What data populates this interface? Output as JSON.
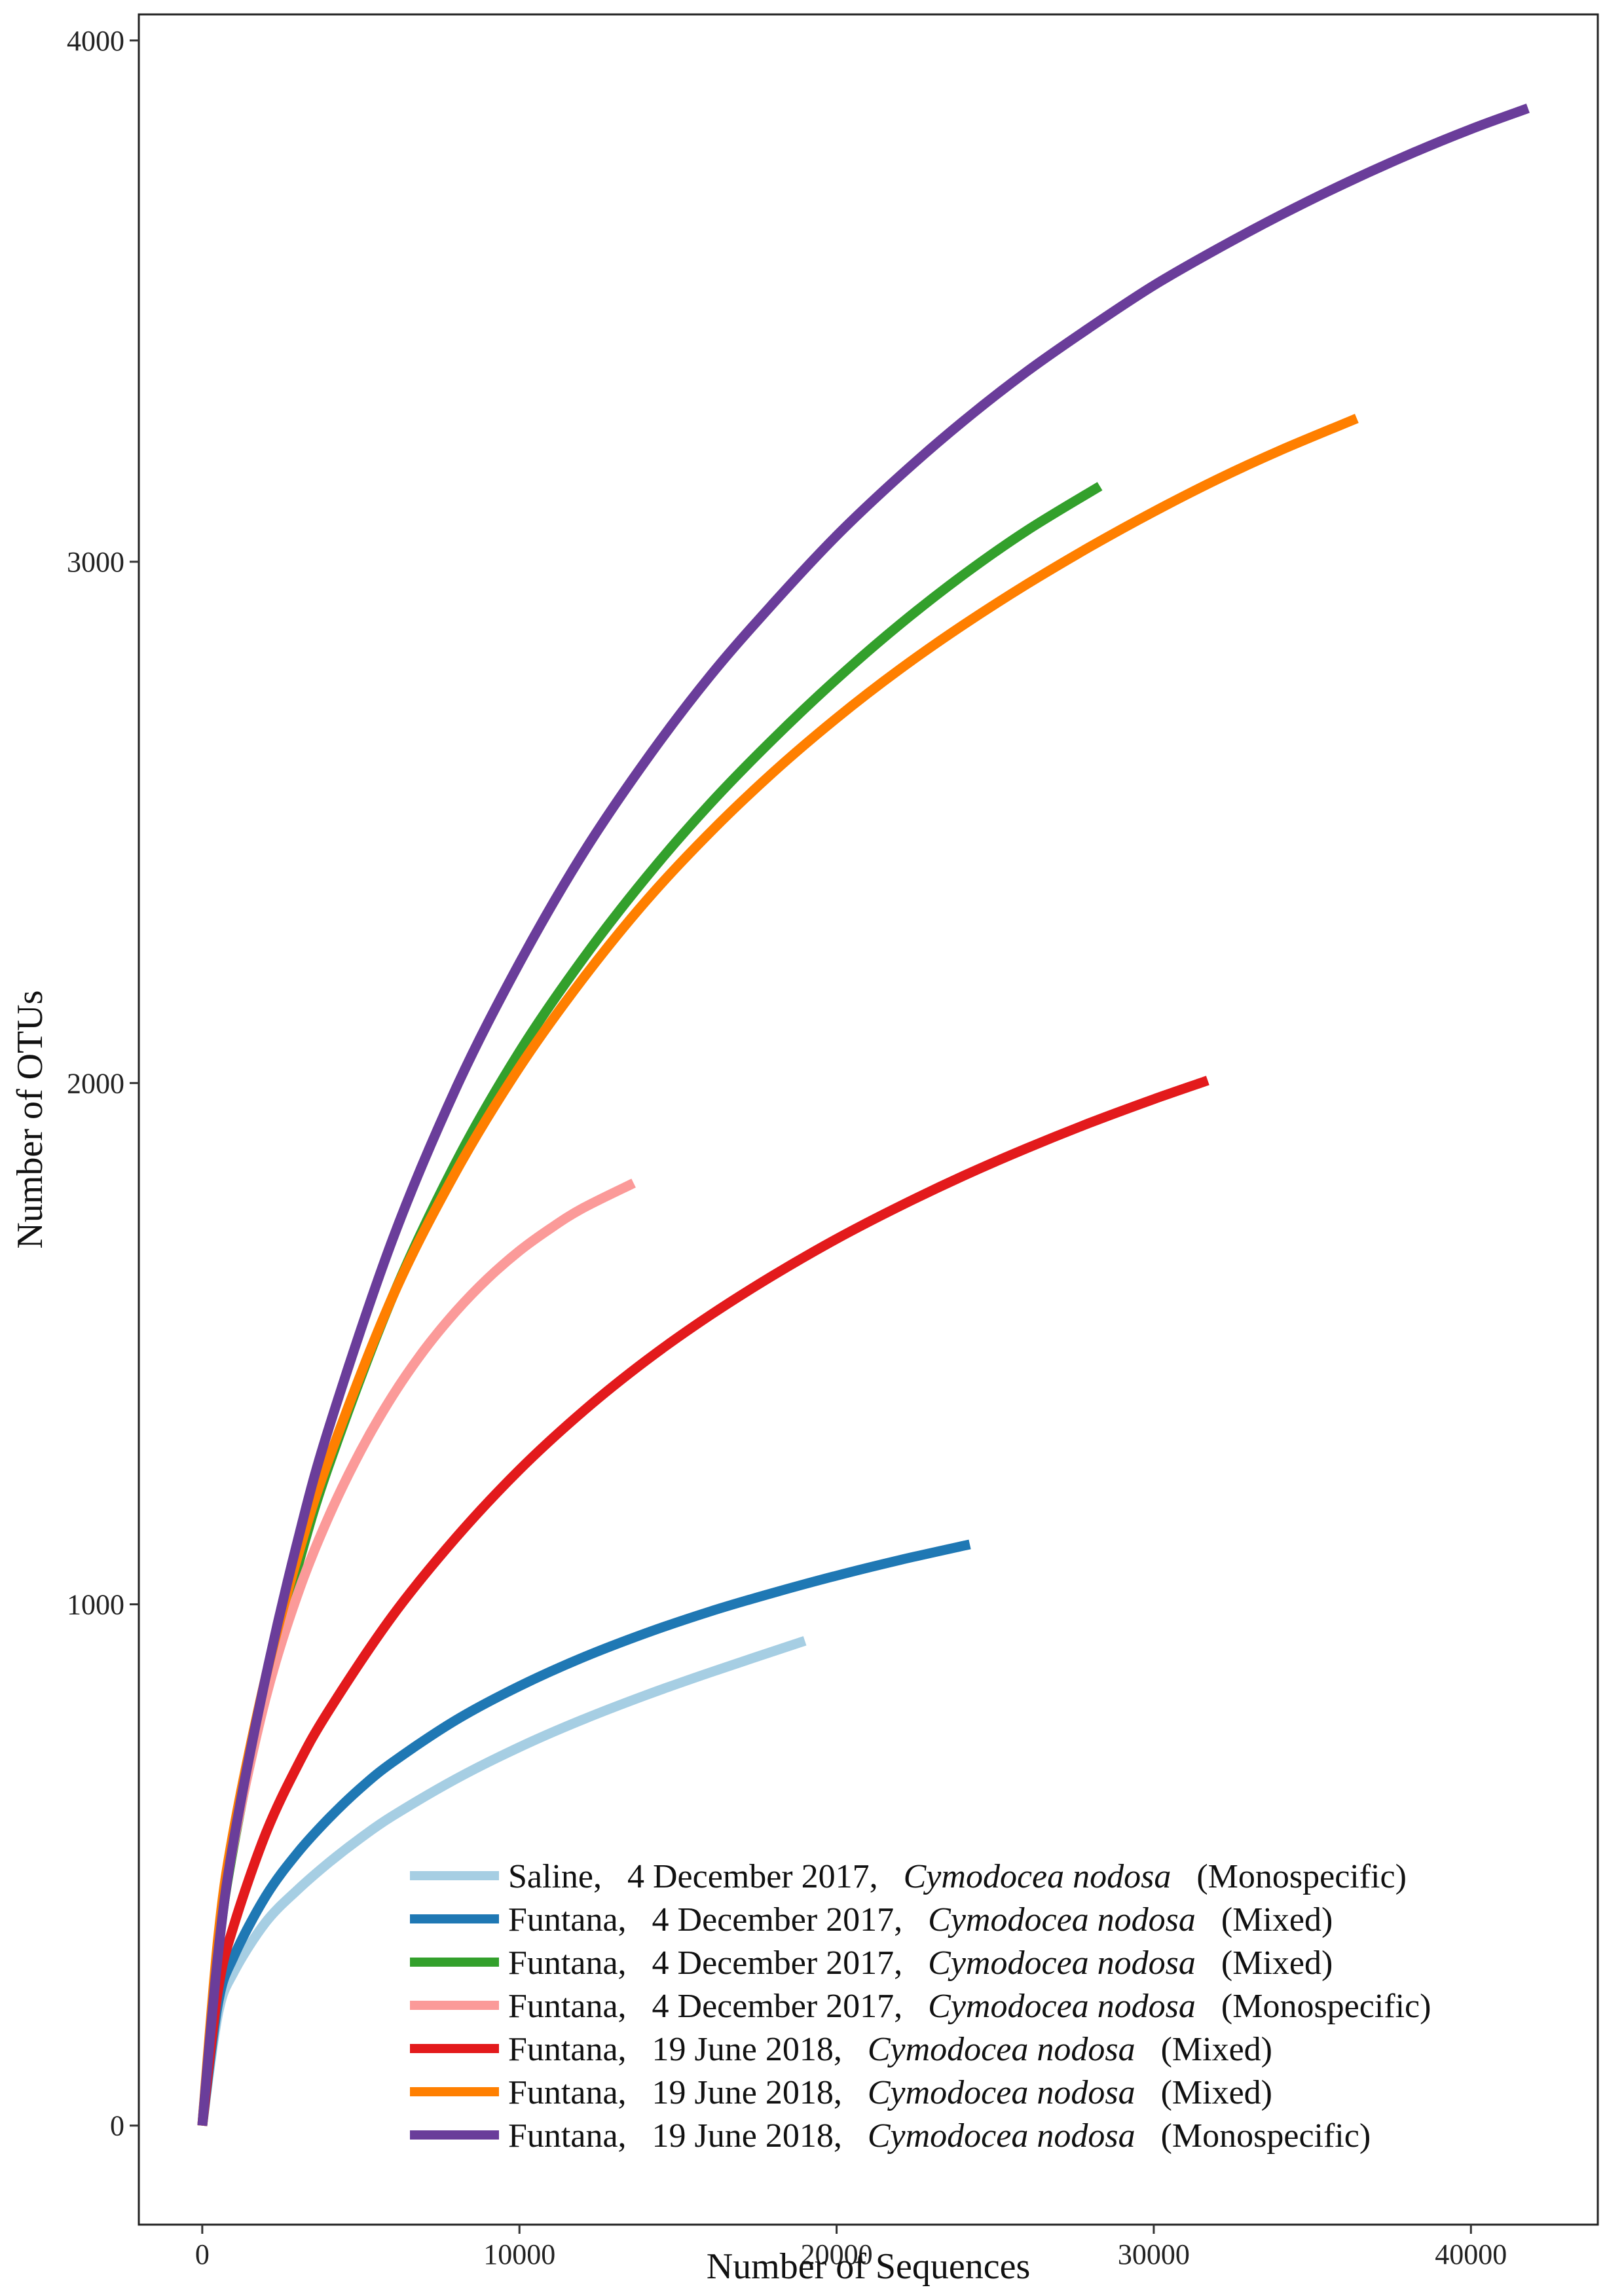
{
  "chart_data": {
    "type": "line",
    "title": "",
    "xlabel": "Number of Sequences",
    "ylabel": "Number of OTUs",
    "xlim": [
      -2000,
      44000
    ],
    "ylim": [
      -190,
      4050
    ],
    "xticks": [
      0,
      10000,
      20000,
      30000,
      40000
    ],
    "yticks": [
      0,
      1000,
      2000,
      3000,
      4000
    ],
    "xtick_labels": [
      "0",
      "10000",
      "20000",
      "30000",
      "40000"
    ],
    "ytick_labels": [
      "0",
      "1000",
      "2000",
      "3000",
      "4000"
    ],
    "grid": false,
    "legend_position": "bottom-right",
    "series": [
      {
        "site": "Saline,",
        "date": "4 December 2017,",
        "species": "Cymodocea nodosa",
        "meadow": "(Monospecific)",
        "color": "#a6cee3",
        "x": [
          0,
          500,
          1000,
          2000,
          3000,
          4000,
          5000,
          6000,
          8000,
          10000,
          12000,
          14000,
          16000,
          19000
        ],
        "y": [
          0,
          215,
          295,
          390,
          452,
          505,
          552,
          594,
          665,
          726,
          779,
          826,
          869,
          930
        ]
      },
      {
        "site": "Funtana,",
        "date": "4 December 2017,",
        "species": "Cymodocea nodosa",
        "meadow": "(Mixed)",
        "color": "#1f78b4",
        "x": [
          0,
          500,
          1000,
          2000,
          3000,
          4000,
          5000,
          6000,
          8000,
          10000,
          12000,
          14000,
          16000,
          18000,
          20000,
          22000,
          24200
        ],
        "y": [
          0,
          235,
          325,
          440,
          523,
          590,
          648,
          697,
          778,
          843,
          898,
          945,
          986,
          1022,
          1055,
          1085,
          1115
        ]
      },
      {
        "site": "Funtana,",
        "date": "4 December 2017,",
        "species": "Cymodocea nodosa",
        "meadow": "(Mixed)",
        "color": "#33a02c",
        "x": [
          0,
          500,
          1000,
          2000,
          3000,
          4000,
          6000,
          8000,
          10000,
          12000,
          14000,
          16000,
          18000,
          20000,
          22000,
          24000,
          26000,
          28300
        ],
        "y": [
          0,
          335,
          540,
          838,
          1070,
          1268,
          1590,
          1848,
          2060,
          2238,
          2395,
          2535,
          2660,
          2775,
          2880,
          2975,
          3060,
          3145
        ]
      },
      {
        "site": "Funtana,",
        "date": "4 December 2017,",
        "species": "Cymodocea nodosa",
        "meadow": "(Monospecific)",
        "color": "#fb9a99",
        "x": [
          0,
          500,
          1000,
          2000,
          3000,
          4000,
          5000,
          6000,
          7000,
          8000,
          9000,
          10000,
          11000,
          12000,
          13600
        ],
        "y": [
          0,
          340,
          545,
          820,
          1018,
          1170,
          1295,
          1400,
          1488,
          1562,
          1625,
          1678,
          1722,
          1760,
          1808
        ]
      },
      {
        "site": "Funtana,",
        "date": "19 June 2018,",
        "species": "Cymodocea nodosa",
        "meadow": "(Mixed)",
        "color": "#e31a1c",
        "x": [
          0,
          500,
          1000,
          2000,
          3000,
          4000,
          6000,
          8000,
          10000,
          12000,
          14000,
          16000,
          18000,
          20000,
          22000,
          24000,
          26000,
          28000,
          30000,
          31700
        ],
        "y": [
          0,
          260,
          385,
          560,
          690,
          797,
          978,
          1128,
          1258,
          1370,
          1468,
          1554,
          1631,
          1701,
          1764,
          1822,
          1875,
          1924,
          1969,
          2005
        ]
      },
      {
        "site": "Funtana,",
        "date": "19 June 2018,",
        "species": "Cymodocea nodosa",
        "meadow": "(Mixed)",
        "color": "#ff7f00",
        "x": [
          0,
          500,
          1000,
          2000,
          3000,
          4000,
          6000,
          8000,
          10000,
          12000,
          14000,
          16000,
          18000,
          20000,
          22000,
          24000,
          26000,
          28000,
          30000,
          32000,
          34000,
          36400
        ],
        "y": [
          0,
          360,
          570,
          860,
          1090,
          1280,
          1590,
          1830,
          2030,
          2200,
          2350,
          2480,
          2596,
          2700,
          2794,
          2879,
          2957,
          3029,
          3096,
          3158,
          3214,
          3275
        ]
      },
      {
        "site": "Funtana,",
        "date": "19 June 2018,",
        "species": "Cymodocea nodosa",
        "meadow": "(Monospecific)",
        "color": "#6a3d9a",
        "x": [
          0,
          500,
          1000,
          2000,
          3000,
          4000,
          6000,
          8000,
          10000,
          12000,
          14000,
          16000,
          18000,
          20000,
          22000,
          24000,
          26000,
          28000,
          30000,
          32000,
          34000,
          36000,
          38000,
          40000,
          41800
        ],
        "y": [
          0,
          330,
          550,
          860,
          1120,
          1340,
          1700,
          1990,
          2230,
          2440,
          2620,
          2780,
          2920,
          3050,
          3165,
          3270,
          3365,
          3450,
          3530,
          3600,
          3665,
          3725,
          3780,
          3830,
          3870
        ]
      }
    ]
  }
}
